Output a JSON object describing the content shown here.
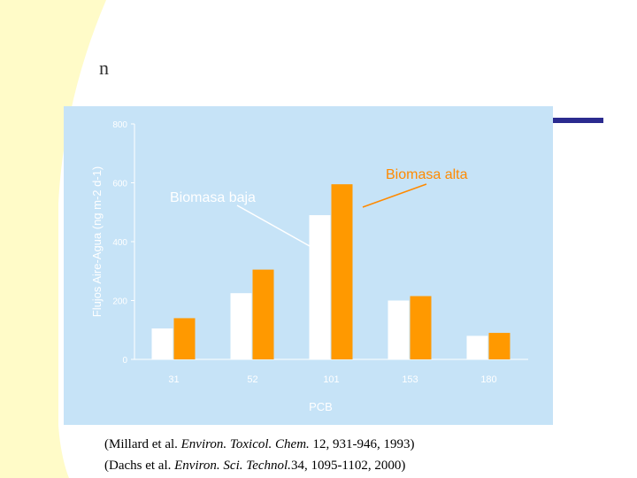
{
  "title_text": "n",
  "colors": {
    "background_accent": "#fffbc8",
    "panel": "#c6e3f7",
    "series_baja": "#ffffff",
    "series_alta": "#ff9900",
    "axis_text": "#ffffff",
    "alta_label": "#ff8a00",
    "decor_bar": "#2b2b8f"
  },
  "chart_data": {
    "type": "bar",
    "ylabel": "Flujos Aire-Agua (ng m-2 d-1)",
    "xlabel": "PCB",
    "categories": [
      "31",
      "52",
      "101",
      "153",
      "180"
    ],
    "yticks": [
      "0",
      "200",
      "400",
      "600",
      "800"
    ],
    "ylim": [
      0,
      800
    ],
    "grid": false,
    "series": [
      {
        "name": "Biomasa baja",
        "values": [
          105,
          225,
          490,
          200,
          80
        ]
      },
      {
        "name": "Biomasa alta",
        "values": [
          140,
          305,
          595,
          215,
          90
        ]
      }
    ],
    "annotations": [
      {
        "text": "Biomasa baja"
      },
      {
        "text": "Biomasa alta"
      }
    ]
  },
  "citation": {
    "line1": {
      "prefix": "(Millard et al. ",
      "journal": "Environ. Toxicol. Chem.",
      "suffix": " 12, 931-946, 1993)"
    },
    "line2": {
      "prefix": "(Dachs et al. ",
      "journal": "Environ. Sci. Technol.",
      "suffix": "34, 1095-1102, 2000)"
    }
  }
}
